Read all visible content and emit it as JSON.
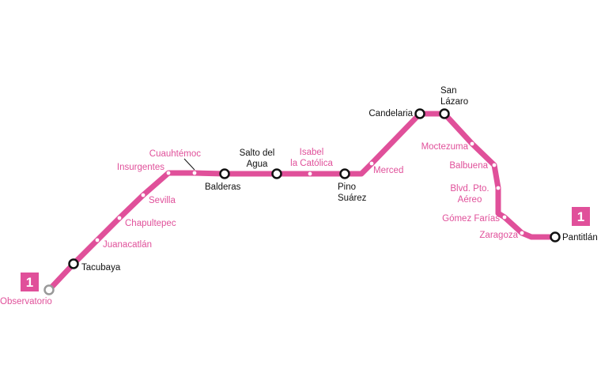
{
  "line": {
    "number": "1",
    "color": "#e0509a",
    "terminal_west": "Observatorio",
    "terminal_east": "Pantitlán"
  },
  "stations": [
    {
      "id": "observatorio",
      "lines": [
        "Observatorio"
      ],
      "type": "terminal-gray"
    },
    {
      "id": "tacubaya",
      "lines": [
        "Tacubaya"
      ],
      "type": "transfer"
    },
    {
      "id": "juanacatlan",
      "lines": [
        "Juanacatlán"
      ],
      "type": "regular"
    },
    {
      "id": "chapultepec",
      "lines": [
        "Chapultepec"
      ],
      "type": "regular"
    },
    {
      "id": "sevilla",
      "lines": [
        "Sevilla"
      ],
      "type": "regular"
    },
    {
      "id": "insurgentes",
      "lines": [
        "Insurgentes"
      ],
      "type": "regular"
    },
    {
      "id": "cuauhtemoc",
      "lines": [
        "Cuauhtémoc"
      ],
      "type": "regular"
    },
    {
      "id": "balderas",
      "lines": [
        "Balderas"
      ],
      "type": "transfer"
    },
    {
      "id": "salto-del-agua",
      "lines": [
        "Salto del",
        "Agua"
      ],
      "type": "transfer"
    },
    {
      "id": "isabel-la-catolica",
      "lines": [
        "Isabel",
        "la Católica"
      ],
      "type": "regular"
    },
    {
      "id": "pino-suarez",
      "lines": [
        "Pino",
        "Suárez"
      ],
      "type": "transfer"
    },
    {
      "id": "merced",
      "lines": [
        "Merced"
      ],
      "type": "regular"
    },
    {
      "id": "candelaria",
      "lines": [
        "Candelaria"
      ],
      "type": "transfer"
    },
    {
      "id": "san-lazaro",
      "lines": [
        "San",
        "Lázaro"
      ],
      "type": "transfer"
    },
    {
      "id": "moctezuma",
      "lines": [
        "Moctezuma"
      ],
      "type": "regular"
    },
    {
      "id": "balbuena",
      "lines": [
        "Balbuena"
      ],
      "type": "regular"
    },
    {
      "id": "blvd-pto-aereo",
      "lines": [
        "Blvd. Pto.",
        "Aéreo"
      ],
      "type": "regular"
    },
    {
      "id": "gomez-farias",
      "lines": [
        "Gómez Farías"
      ],
      "type": "regular"
    },
    {
      "id": "zaragoza",
      "lines": [
        "Zaragoza"
      ],
      "type": "regular"
    },
    {
      "id": "pantitlan",
      "lines": [
        "Pantitlán"
      ],
      "type": "transfer"
    }
  ]
}
